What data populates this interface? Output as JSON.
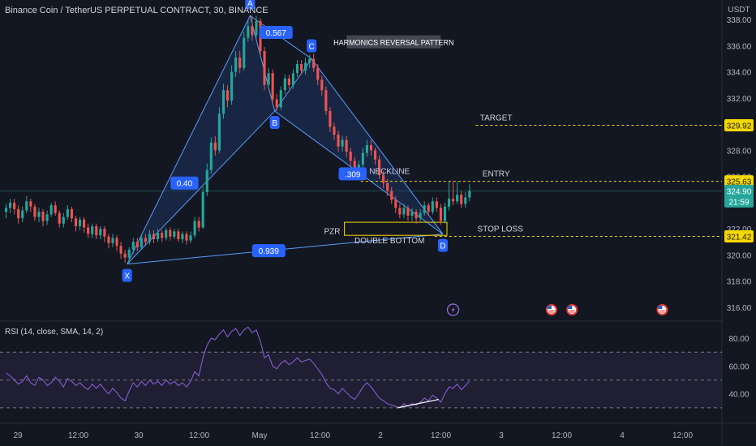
{
  "header": {
    "symbol_title": "Binance Coin / TetherUS PERPETUAL CONTRACT, 30, BINANCE"
  },
  "rsi_title": "RSI (14, close, SMA, 14, 2)",
  "colors": {
    "background": "#131722",
    "up": "#26a69a",
    "down": "#ef5350",
    "pattern_stroke": "#5b9cf6",
    "pattern_fill": "#1f3a6e",
    "label_bg": "#2962ff",
    "level_yellow": "#f5d800",
    "rsi_line": "#7e57c2",
    "rsi_band": "#2a2540"
  },
  "price_axis": {
    "unit": "USDT",
    "ticks": [
      "338.00",
      "336.00",
      "334.00",
      "332.00",
      "330.00",
      "328.00",
      "326.00",
      "322.00",
      "320.00",
      "318.00",
      "316.00"
    ],
    "tick_values": [
      338,
      336,
      334,
      332,
      330,
      328,
      326,
      322,
      320,
      318,
      316
    ],
    "tags": [
      {
        "value": 329.92,
        "text": "329.92",
        "style": "yellow"
      },
      {
        "value": 325.63,
        "text": "325.63",
        "style": "yellow"
      },
      {
        "value": 324.9,
        "text": "324.90",
        "sub": "21:59",
        "style": "green"
      },
      {
        "value": 321.42,
        "text": "321.42",
        "style": "yellow"
      }
    ]
  },
  "time_axis": {
    "labels": [
      "29",
      "12:00",
      "30",
      "12:00",
      "May",
      "12:00",
      "2",
      "12:00",
      "3",
      "12:00",
      "4",
      "12:00"
    ]
  },
  "rsi_axis": {
    "ticks": [
      "80.00",
      "60.00",
      "40.00"
    ],
    "tick_values": [
      80,
      60,
      40
    ],
    "upper": 70,
    "mid": 50,
    "lower": 30
  },
  "annotations": {
    "points": [
      {
        "label": "X",
        "price": 319.3,
        "t": 30
      },
      {
        "label": "A",
        "price": 338.3,
        "t": 60
      },
      {
        "label": "B",
        "price": 331.0,
        "t": 66
      },
      {
        "label": "C",
        "price": 335.0,
        "t": 75
      },
      {
        "label": "D",
        "price": 321.6,
        "t": 107
      }
    ],
    "ratios": [
      {
        "text": "0.567",
        "between": "A-C"
      },
      {
        "text": "0.40",
        "between": "X-B"
      },
      {
        "text": ".309",
        "between": "B-D"
      },
      {
        "text": "0.939",
        "between": "X-D"
      }
    ],
    "pattern_name": "HARMONICS REVERSAL PATTERN",
    "neckline_label": "NECKLINE",
    "double_bottom_label": "DOUBLE BOTTOM",
    "pzr_label": "PZR",
    "target_label": "TARGET",
    "entry_label": "ENTRY",
    "stop_label": "STOP LOSS",
    "pzr_zone": [
      321.5,
      322.5
    ]
  },
  "chart_data": {
    "type": "candlestick",
    "title": "Binance Coin / TetherUS PERPETUAL CONTRACT, 30, BINANCE",
    "ylim": [
      315,
      339.5
    ],
    "x_range": [
      0,
      180
    ],
    "levels": {
      "target": 329.92,
      "entry": 325.63,
      "stop_loss": 321.42,
      "last": 324.9
    },
    "candles": [
      [
        323.3,
        323.6,
        323.9,
        322.8
      ],
      [
        323.6,
        324.0,
        324.3,
        323.2
      ],
      [
        324.0,
        323.5,
        324.3,
        323.1
      ],
      [
        323.5,
        322.8,
        323.8,
        322.4
      ],
      [
        322.8,
        323.4,
        323.7,
        322.5
      ],
      [
        323.4,
        324.1,
        324.5,
        323.2
      ],
      [
        324.1,
        323.7,
        324.3,
        323.3
      ],
      [
        323.7,
        322.9,
        323.9,
        322.6
      ],
      [
        322.9,
        323.3,
        323.6,
        322.5
      ],
      [
        323.3,
        322.6,
        323.5,
        322.2
      ],
      [
        322.6,
        323.1,
        323.4,
        322.3
      ],
      [
        323.1,
        323.8,
        324.0,
        322.9
      ],
      [
        323.8,
        323.2,
        324.1,
        323.0
      ],
      [
        323.2,
        322.4,
        323.4,
        322.1
      ],
      [
        322.4,
        322.9,
        323.2,
        322.1
      ],
      [
        322.9,
        323.5,
        323.8,
        322.7
      ],
      [
        323.5,
        322.8,
        323.7,
        322.5
      ],
      [
        322.8,
        322.2,
        323.0,
        321.8
      ],
      [
        322.2,
        322.7,
        322.9,
        321.9
      ],
      [
        322.7,
        322.1,
        322.9,
        321.7
      ],
      [
        322.1,
        321.6,
        322.4,
        321.3
      ],
      [
        321.6,
        322.2,
        322.4,
        321.3
      ],
      [
        322.2,
        321.5,
        322.4,
        321.2
      ],
      [
        321.5,
        322.0,
        322.2,
        321.2
      ],
      [
        322.0,
        321.4,
        322.2,
        321.0
      ],
      [
        321.4,
        320.9,
        321.6,
        320.5
      ],
      [
        320.9,
        321.3,
        321.6,
        320.6
      ],
      [
        321.3,
        320.7,
        321.5,
        320.3
      ],
      [
        320.7,
        320.1,
        321.0,
        319.7
      ],
      [
        320.1,
        319.8,
        320.4,
        319.4
      ],
      [
        319.8,
        320.4,
        320.6,
        319.3
      ],
      [
        320.4,
        321.0,
        321.3,
        320.1
      ],
      [
        321.0,
        320.6,
        321.3,
        320.3
      ],
      [
        320.6,
        321.3,
        321.6,
        320.4
      ],
      [
        321.3,
        321.0,
        321.6,
        320.7
      ],
      [
        321.0,
        321.6,
        321.9,
        320.8
      ],
      [
        321.6,
        321.2,
        321.9,
        320.9
      ],
      [
        321.2,
        321.7,
        322.0,
        321.0
      ],
      [
        321.7,
        321.3,
        321.9,
        321.0
      ],
      [
        321.3,
        321.9,
        322.1,
        321.1
      ],
      [
        321.9,
        321.4,
        322.1,
        321.1
      ],
      [
        321.4,
        321.8,
        322.0,
        321.2
      ],
      [
        321.8,
        321.2,
        322.0,
        321.0
      ],
      [
        321.2,
        321.6,
        321.8,
        320.9
      ],
      [
        321.6,
        321.1,
        321.8,
        320.8
      ],
      [
        321.1,
        321.5,
        321.8,
        320.9
      ],
      [
        321.5,
        322.6,
        322.9,
        321.3
      ],
      [
        322.6,
        322.1,
        322.9,
        321.8
      ],
      [
        322.1,
        324.8,
        325.2,
        322.0
      ],
      [
        324.8,
        326.5,
        327.0,
        324.5
      ],
      [
        326.5,
        328.6,
        329.0,
        326.2
      ],
      [
        328.6,
        328.0,
        329.1,
        327.6
      ],
      [
        328.0,
        330.8,
        331.3,
        327.8
      ],
      [
        330.8,
        332.6,
        333.1,
        330.4
      ],
      [
        332.6,
        331.8,
        333.0,
        331.3
      ],
      [
        331.8,
        334.0,
        334.5,
        331.5
      ],
      [
        334.0,
        335.1,
        335.6,
        333.6
      ],
      [
        335.1,
        334.3,
        335.6,
        333.9
      ],
      [
        334.3,
        336.6,
        337.1,
        334.1
      ],
      [
        336.6,
        337.5,
        338.0,
        336.3
      ],
      [
        337.5,
        336.8,
        338.3,
        336.4
      ],
      [
        336.8,
        337.9,
        338.3,
        336.5
      ],
      [
        337.9,
        335.6,
        338.1,
        335.2
      ],
      [
        335.6,
        333.0,
        335.9,
        332.6
      ],
      [
        333.0,
        333.9,
        334.3,
        332.7
      ],
      [
        333.9,
        331.9,
        334.2,
        331.5
      ],
      [
        331.9,
        331.3,
        332.3,
        331.0
      ],
      [
        331.3,
        332.6,
        332.9,
        331.1
      ],
      [
        332.6,
        333.5,
        333.8,
        332.3
      ],
      [
        333.5,
        333.0,
        333.8,
        332.7
      ],
      [
        333.0,
        333.9,
        334.2,
        332.7
      ],
      [
        333.9,
        334.6,
        334.9,
        333.6
      ],
      [
        334.6,
        334.1,
        334.9,
        333.8
      ],
      [
        334.1,
        334.7,
        335.1,
        333.8
      ],
      [
        334.7,
        335.0,
        335.3,
        334.3
      ],
      [
        335.0,
        334.3,
        335.4,
        334.0
      ],
      [
        334.3,
        333.4,
        334.6,
        333.0
      ],
      [
        333.4,
        332.6,
        333.7,
        332.2
      ],
      [
        332.6,
        331.0,
        332.9,
        330.7
      ],
      [
        331.0,
        329.8,
        331.3,
        329.4
      ],
      [
        329.8,
        329.2,
        330.1,
        328.8
      ],
      [
        329.2,
        328.3,
        329.5,
        327.9
      ],
      [
        328.3,
        328.8,
        329.1,
        327.9
      ],
      [
        328.8,
        327.9,
        329.1,
        327.5
      ],
      [
        327.9,
        327.2,
        328.2,
        326.8
      ],
      [
        327.2,
        326.4,
        327.5,
        326.0
      ],
      [
        326.4,
        326.9,
        327.2,
        326.1
      ],
      [
        326.9,
        327.8,
        328.2,
        326.7
      ],
      [
        327.8,
        328.4,
        328.8,
        327.5
      ],
      [
        328.4,
        328.0,
        328.8,
        327.6
      ],
      [
        328.0,
        327.3,
        328.2,
        326.9
      ],
      [
        327.3,
        326.1,
        327.6,
        325.8
      ],
      [
        326.1,
        325.5,
        326.4,
        325.1
      ],
      [
        325.5,
        324.9,
        325.8,
        324.5
      ],
      [
        324.9,
        324.2,
        325.2,
        323.9
      ],
      [
        324.2,
        323.6,
        324.5,
        323.2
      ],
      [
        323.6,
        323.1,
        323.9,
        322.8
      ],
      [
        323.1,
        323.6,
        323.9,
        322.8
      ],
      [
        323.6,
        323.0,
        323.8,
        322.6
      ],
      [
        323.0,
        323.3,
        323.6,
        322.6
      ],
      [
        323.3,
        322.8,
        323.5,
        322.4
      ],
      [
        322.8,
        323.2,
        323.5,
        322.5
      ],
      [
        323.2,
        323.8,
        324.1,
        323.0
      ],
      [
        323.8,
        323.3,
        324.0,
        323.0
      ],
      [
        323.3,
        324.1,
        324.4,
        323.1
      ],
      [
        324.1,
        323.6,
        324.4,
        323.3
      ],
      [
        323.6,
        322.6,
        323.9,
        322.3
      ],
      [
        322.6,
        323.7,
        324.0,
        322.4
      ],
      [
        323.7,
        324.3,
        325.6,
        323.4
      ],
      [
        324.3,
        324.1,
        325.6,
        323.8
      ],
      [
        324.1,
        324.6,
        325.6,
        323.9
      ],
      [
        324.6,
        323.9,
        324.9,
        323.6
      ],
      [
        323.9,
        324.4,
        324.8,
        323.6
      ],
      [
        324.4,
        324.9,
        325.4,
        324.1
      ]
    ],
    "rsi": [
      55,
      53,
      50,
      47,
      49,
      53,
      48,
      46,
      52,
      50,
      46,
      48,
      52,
      49,
      45,
      51,
      49,
      46,
      48,
      45,
      43,
      47,
      44,
      47,
      43,
      40,
      44,
      41,
      37,
      35,
      42,
      48,
      45,
      49,
      46,
      50,
      47,
      49,
      46,
      50,
      47,
      49,
      46,
      48,
      45,
      49,
      56,
      53,
      66,
      75,
      80,
      79,
      83,
      86,
      81,
      85,
      87,
      82,
      86,
      88,
      84,
      86,
      78,
      66,
      68,
      60,
      58,
      62,
      64,
      61,
      63,
      66,
      63,
      64,
      65,
      62,
      58,
      54,
      48,
      44,
      43,
      40,
      44,
      41,
      38,
      36,
      40,
      45,
      48,
      45,
      41,
      37,
      35,
      33,
      32,
      31,
      30,
      33,
      31,
      33,
      32,
      34,
      37,
      35,
      39,
      37,
      34,
      40,
      45,
      44,
      47,
      43,
      46,
      49
    ],
    "rsi_ma_segment": [
      [
        96,
        30
      ],
      [
        106,
        36
      ]
    ]
  }
}
